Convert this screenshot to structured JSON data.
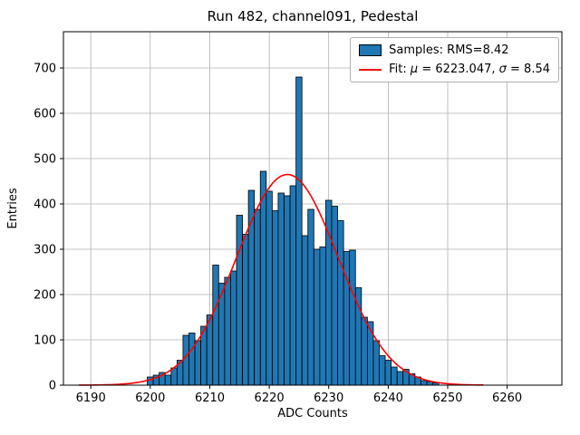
{
  "chart_data": {
    "type": "bar",
    "subtype": "histogram-with-gaussian-fit",
    "title": "Run 482, channel091, Pedestal",
    "xlabel": "ADC Counts",
    "ylabel": "Entries",
    "xlim": [
      6185.4,
      6269.2
    ],
    "ylim": [
      0,
      780
    ],
    "xticks": [
      6190,
      6200,
      6210,
      6220,
      6230,
      6240,
      6250,
      6260
    ],
    "yticks": [
      0,
      100,
      200,
      300,
      400,
      500,
      600,
      700
    ],
    "grid": true,
    "histogram": {
      "bin_width": 1,
      "first_bin_left": 6199.5,
      "counts": [
        18,
        22,
        28,
        22,
        38,
        55,
        110,
        115,
        98,
        130,
        155,
        265,
        225,
        238,
        252,
        375,
        333,
        430,
        388,
        472,
        428,
        385,
        424,
        418,
        440,
        680,
        330,
        388,
        300,
        305,
        408,
        395,
        363,
        295,
        298,
        215,
        150,
        140,
        98,
        65,
        55,
        40,
        30,
        35,
        25,
        18,
        10,
        8,
        5
      ],
      "rms": 8.42
    },
    "fit": {
      "mu": 6223.047,
      "sigma": 8.54,
      "amplitude": 465,
      "range": [
        6188,
        6256
      ]
    },
    "legend": [
      {
        "swatch": "patch",
        "label": "Samples: RMS=8.42"
      },
      {
        "swatch": "line",
        "label": "Fit: μ = 6223.047, σ = 8.54"
      }
    ],
    "colors": {
      "background": "#ffffff",
      "bar_fill": "#1f77b4",
      "bar_edge": "#000000",
      "fit_line": "#ff0000",
      "grid": "#b0b0b0",
      "axis": "#000000",
      "text": "#000000"
    },
    "legend_position": "upper right"
  }
}
